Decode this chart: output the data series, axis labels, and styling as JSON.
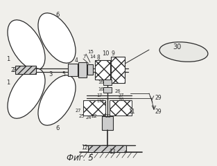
{
  "bg_color": "#f0efeb",
  "line_color": "#2a2a2a",
  "fig_caption": "Фиг. 5",
  "figsize": [
    3.13,
    2.4
  ],
  "dpi": 100
}
